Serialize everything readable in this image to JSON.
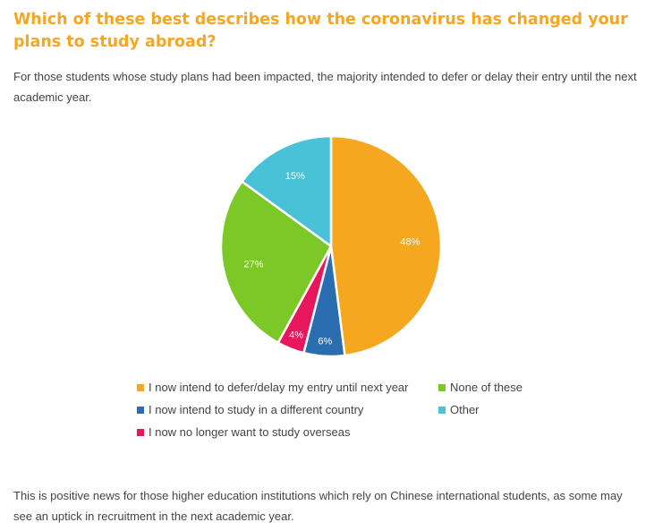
{
  "header": {
    "title": "Which of these best describes how the coronavirus has changed your plans to study abroad?",
    "intro": "For those students whose study plans had been impacted, the majority intended to defer or delay their entry until the next academic year."
  },
  "footer": {
    "text": "This is positive news for those higher education institutions which rely on Chinese international students, as some may see an uptick in recruitment in the next academic year."
  },
  "chart_data": {
    "type": "pie",
    "title": "",
    "legend_position": "bottom",
    "slices": [
      {
        "label": "I now intend to defer/delay my entry until next year",
        "value": 48,
        "display": "48%",
        "color": "#f5a81f"
      },
      {
        "label": "I now intend to study in a different country",
        "value": 6,
        "display": "6%",
        "color": "#2a6db0"
      },
      {
        "label": "I now no longer want to study overseas",
        "value": 4,
        "display": "4%",
        "color": "#e8175d"
      },
      {
        "label": "None of these",
        "value": 27,
        "display": "27%",
        "color": "#7cc827"
      },
      {
        "label": "Other",
        "value": 15,
        "display": "15%",
        "color": "#49c2d8"
      }
    ]
  }
}
